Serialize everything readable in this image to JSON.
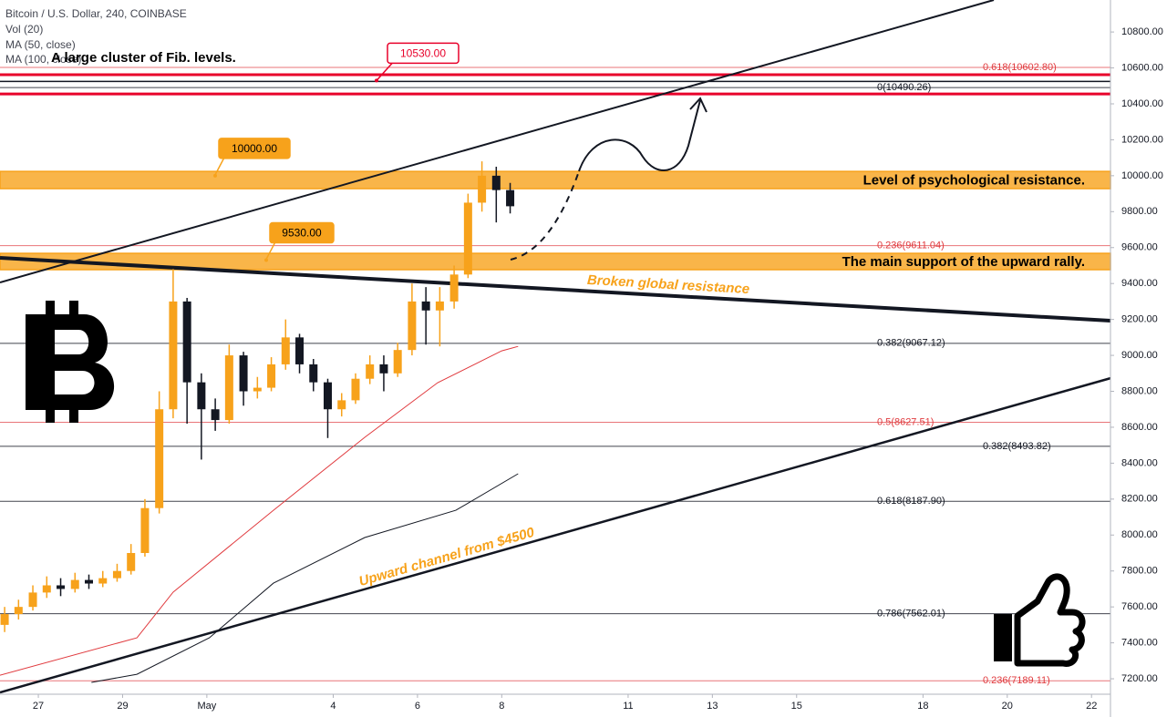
{
  "chart_data": {
    "type": "candlestick",
    "title": "Bitcoin / U.S. Dollar, 240, COINBASE",
    "indicators": [
      "Vol (20)"
    ],
    "up_color": "#f7a21b",
    "down_color": "#131722",
    "x": [
      -0.8,
      -0.47,
      -0.13,
      0.2,
      0.53,
      0.87,
      1.2,
      1.53,
      1.87,
      2.2,
      2.53,
      2.87,
      3.2,
      3.53,
      3.87,
      4.2,
      4.53,
      4.87,
      5.2,
      5.53,
      5.87,
      6.2,
      6.53,
      6.87,
      7.2,
      7.53,
      7.87,
      8.2,
      8.53,
      8.87,
      9.2,
      9.53,
      9.87,
      10.2,
      10.53,
      10.87,
      11.2
    ],
    "open": [
      7500,
      7560,
      7600,
      7680,
      7720,
      7700,
      7750,
      7730,
      7760,
      7800,
      7900,
      8150,
      8700,
      9300,
      8850,
      8700,
      8640,
      9000,
      8800,
      8820,
      8950,
      9100,
      8950,
      8850,
      8700,
      8750,
      8870,
      8950,
      8900,
      9030,
      9300,
      9250,
      9300,
      9450,
      9850,
      10000,
      9920
    ],
    "high": [
      7600,
      7640,
      7720,
      7770,
      7760,
      7790,
      7780,
      7800,
      7840,
      7950,
      8200,
      8800,
      9480,
      9320,
      8900,
      8760,
      9060,
      9020,
      8880,
      8990,
      9200,
      9120,
      8980,
      8870,
      8790,
      8900,
      9000,
      9000,
      9070,
      9400,
      9380,
      9380,
      9500,
      9900,
      10080,
      10050,
      9960
    ],
    "low": [
      7460,
      7530,
      7580,
      7650,
      7660,
      7680,
      7700,
      7710,
      7740,
      7780,
      7880,
      8120,
      8650,
      8620,
      8420,
      8580,
      8620,
      8720,
      8760,
      8800,
      8920,
      8900,
      8800,
      8540,
      8660,
      8730,
      8840,
      8800,
      8880,
      9000,
      9060,
      9050,
      9260,
      9430,
      9800,
      9740,
      9790
    ],
    "close": [
      7560,
      7600,
      7680,
      7720,
      7700,
      7750,
      7730,
      7760,
      7800,
      7900,
      8150,
      8700,
      9300,
      8850,
      8700,
      8640,
      9000,
      8800,
      8820,
      8950,
      9100,
      8950,
      8850,
      8700,
      8750,
      8870,
      8950,
      8900,
      9030,
      9300,
      9250,
      9300,
      9450,
      9850,
      10000,
      9920,
      9830
    ],
    "series": [
      {
        "name": "MA (50, close)",
        "color": "#e03a3e",
        "x": [
          -0.91,
          2.34,
          3.2,
          5.58,
          7.75,
          9.48,
          11,
          11.39
        ],
        "values": [
          7220,
          7428,
          7682,
          8138,
          8544,
          8848,
          9025,
          9050
        ]
      },
      {
        "name": "MA (100, close)",
        "color": "#131722",
        "x": [
          1.26,
          2.34,
          4.06,
          5.58,
          7.75,
          9.91,
          11.39
        ],
        "values": [
          7180,
          7225,
          7428,
          7732,
          7986,
          8138,
          8341
        ]
      }
    ],
    "xlim": [
      -0.91,
      25.45
    ],
    "xticks": [
      {
        "value": 0,
        "label": "27"
      },
      {
        "value": 2,
        "label": "29"
      },
      {
        "value": 4,
        "label": "May"
      },
      {
        "value": 7,
        "label": "4"
      },
      {
        "value": 9,
        "label": "6"
      },
      {
        "value": 11,
        "label": "8"
      },
      {
        "value": 14,
        "label": "11"
      },
      {
        "value": 16,
        "label": "13"
      },
      {
        "value": 18,
        "label": "15"
      },
      {
        "value": 21,
        "label": "18"
      },
      {
        "value": 23,
        "label": "20"
      },
      {
        "value": 25,
        "label": "22"
      }
    ],
    "ylim": [
      7114,
      10978
    ],
    "yticks": [
      {
        "value": 7200,
        "label": "7200.00"
      },
      {
        "value": 7400,
        "label": "7400.00"
      },
      {
        "value": 7600,
        "label": "7600.00"
      },
      {
        "value": 7800,
        "label": "7800.00"
      },
      {
        "value": 8000,
        "label": "8000.00"
      },
      {
        "value": 8200,
        "label": "8200.00"
      },
      {
        "value": 8400,
        "label": "8400.00"
      },
      {
        "value": 8600,
        "label": "8600.00"
      },
      {
        "value": 8800,
        "label": "8800.00"
      },
      {
        "value": 9000,
        "label": "9000.00"
      },
      {
        "value": 9200,
        "label": "9200.00"
      },
      {
        "value": 9400,
        "label": "9400.00"
      },
      {
        "value": 9600,
        "label": "9600.00"
      },
      {
        "value": 9800,
        "label": "9800.00"
      },
      {
        "value": 10000,
        "label": "10000.00"
      },
      {
        "value": 10200,
        "label": "10200.00"
      },
      {
        "value": 10400,
        "label": "10400.00"
      },
      {
        "value": 10600,
        "label": "10600.00"
      },
      {
        "value": 10800,
        "label": "10800.00"
      }
    ],
    "grid": false,
    "levels": [
      {
        "value": 10602.8,
        "label": "0.618(10602.80)",
        "color": "#e03a3e"
      },
      {
        "value": 10490.26,
        "label": "0(10490.26)",
        "color": "#131722"
      },
      {
        "value": 9611.04,
        "label": "0.236(9611.04)",
        "color": "#e03a3e"
      },
      {
        "value": 9067.12,
        "label": "0.382(9067.12)",
        "color": "#131722"
      },
      {
        "value": 8627.51,
        "label": "0.5(8627.51)",
        "color": "#e03a3e"
      },
      {
        "value": 8493.82,
        "label": "0.382(8493.82)",
        "color": "#131722"
      },
      {
        "value": 8187.9,
        "label": "0.618(8187.90)",
        "color": "#131722"
      },
      {
        "value": 7562.01,
        "label": "0.786(7562.01)",
        "color": "#131722"
      },
      {
        "value": 7189.11,
        "label": "0.236(7189.11)",
        "color": "#e03a3e"
      }
    ],
    "hlines": [
      {
        "value": 10562,
        "color": "#e8002a"
      },
      {
        "value": 10455,
        "color": "#e8002a"
      },
      {
        "value": 10525,
        "color": "#131722"
      }
    ],
    "zones": [
      {
        "top": 10024,
        "bottom": 9928,
        "label": "Level of psychological resistance.",
        "color": "#f7a21b"
      },
      {
        "top": 9568,
        "bottom": 9477,
        "label": "The main support of the upward rally.",
        "color": "#f7a21b"
      }
    ],
    "price_labels": [
      {
        "value": 10000,
        "label": "10000.00",
        "color": "#f7a21b"
      },
      {
        "value": 9530,
        "label": "9530.00",
        "color": "#f7a21b"
      },
      {
        "value": 10530,
        "label": "10530.00",
        "color": "#e8002a"
      }
    ],
    "trendlines": [
      {
        "x": [
          -0.91,
          22.68
        ],
        "values": [
          9406,
          10978
        ]
      },
      {
        "x": [
          -0.91,
          25.45
        ],
        "values": [
          9543,
          9193
        ]
      },
      {
        "x": [
          -0.91,
          25.45
        ],
        "values": [
          7124,
          8873
        ]
      }
    ],
    "annotations": [
      "A large cluster of Fib. levels.",
      "Broken global resistance",
      "Upward channel from $4500"
    ]
  }
}
